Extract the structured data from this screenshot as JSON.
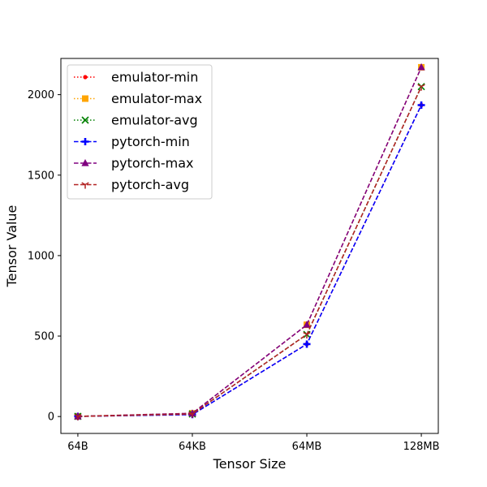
{
  "chart_data": {
    "type": "line",
    "title": "",
    "xlabel": "Tensor Size",
    "ylabel": "Tensor Value",
    "categories": [
      "64B",
      "64KB",
      "64MB",
      "128MB"
    ],
    "yticks": [
      0,
      500,
      1000,
      1500,
      2000
    ],
    "ylim": [
      -105,
      2225
    ],
    "grid": false,
    "legend_position": "top-left",
    "series": [
      {
        "name": "emulator-min",
        "values": [
          1,
          12,
          450,
          1935
        ],
        "color": "#ff0000",
        "linestyle": "dotted",
        "marker": "point"
      },
      {
        "name": "emulator-max",
        "values": [
          1,
          20,
          570,
          2170
        ],
        "color": "#ffa500",
        "linestyle": "dotted",
        "marker": "square"
      },
      {
        "name": "emulator-avg",
        "values": [
          1,
          16,
          510,
          2050
        ],
        "color": "#008000",
        "linestyle": "dotted",
        "marker": "x"
      },
      {
        "name": "pytorch-min",
        "values": [
          1,
          12,
          450,
          1935
        ],
        "color": "#0000ff",
        "linestyle": "dashed",
        "marker": "plus"
      },
      {
        "name": "pytorch-max",
        "values": [
          1,
          20,
          570,
          2170
        ],
        "color": "#800080",
        "linestyle": "dashed",
        "marker": "triangle"
      },
      {
        "name": "pytorch-avg",
        "values": [
          1,
          16,
          510,
          2050
        ],
        "color": "#b22222",
        "linestyle": "dashed",
        "marker": "tri_down"
      }
    ]
  }
}
